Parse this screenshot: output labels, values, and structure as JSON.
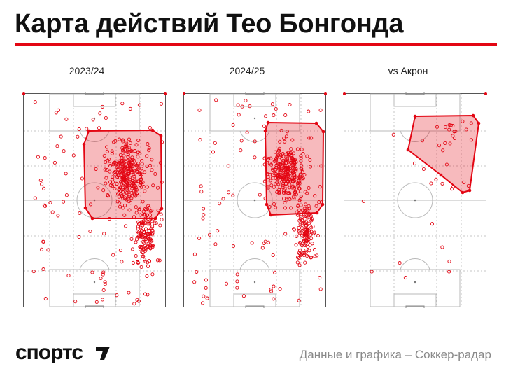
{
  "title": "Карта действий Тео Бонгонда",
  "accent": "#e30613",
  "panels": [
    {
      "label": "2023/24",
      "seed": 11,
      "n": 520
    },
    {
      "label": "2024/25",
      "seed": 23,
      "n": 480
    },
    {
      "label": "vs Акрон",
      "seed": 37,
      "n": 38
    }
  ],
  "brand": "спортс",
  "brand_mark_icon": "apostrophe-mark-icon",
  "credit": "Данные и графика – Соккер-радар"
}
